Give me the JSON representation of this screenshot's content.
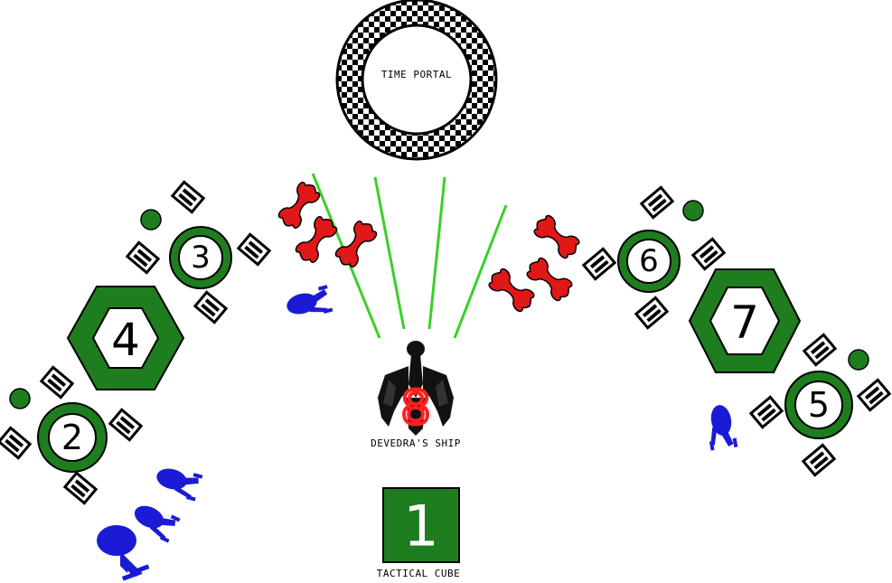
{
  "labels": {
    "time_portal": "TIME PORTAL",
    "devedra_ship": "DEVEDRA'S SHIP",
    "tactical_cube": "TACTICAL CUBE"
  },
  "markers": {
    "circle_2": "2",
    "circle_3": "3",
    "circle_5": "5",
    "circle_6": "6",
    "hex_4": "4",
    "hex_7": "7",
    "cube_1": "1",
    "ship_8": "8"
  },
  "colors": {
    "station_green": "#1e7d1e",
    "beam_green": "#3ccf2a",
    "enemy_red": "#e01818",
    "ally_blue": "#1b1bd6",
    "ship_black": "#111111",
    "ship_number_red": "#ff2020"
  },
  "icons": {
    "portal": "checkered-ring-icon",
    "ship": "devedra-warship-icon",
    "enemy": "red-dumbbell-fighter-icon",
    "ally": "blue-starship-icon",
    "hatch": "striped-hatch-icon",
    "marker": "green-dot-icon"
  }
}
